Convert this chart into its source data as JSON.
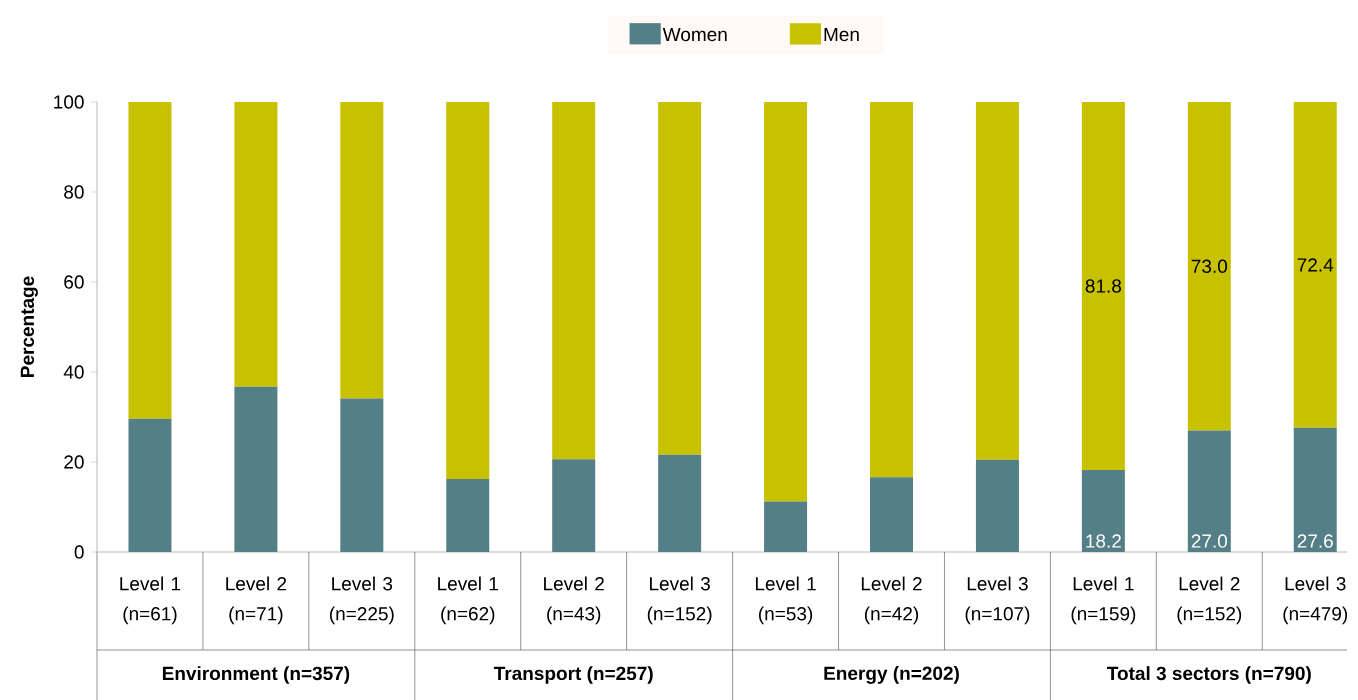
{
  "chart_data": {
    "type": "bar",
    "stacked": true,
    "ylabel": "Percentage",
    "categories": [
      "Level 1 (n=61)",
      "Level 2 (n=71)",
      "Level 3 (n=225)",
      "Level 1 (n=62)",
      "Level 2 (n=43)",
      "Level 3 (n=152)",
      "Level 1 (n=53)",
      "Level 2 (n=42)",
      "Level 3 (n=107)",
      "Level 1 (n=159)",
      "Level 2 (n=152)",
      "Level 3 (n=479)"
    ],
    "series": [
      {
        "name": "Women",
        "color": "#557f87",
        "values": [
          29.6,
          36.7,
          34.1,
          16.2,
          20.6,
          21.6,
          11.2,
          16.6,
          20.5,
          18.2,
          27.0,
          27.6
        ],
        "value_labels": [
          null,
          null,
          null,
          null,
          null,
          null,
          null,
          null,
          null,
          "18.2",
          "27.0",
          "27.6"
        ]
      },
      {
        "name": "Men",
        "color": "#c8c100",
        "values": [
          70.4,
          63.3,
          65.9,
          83.8,
          79.4,
          78.4,
          88.8,
          83.4,
          79.5,
          81.8,
          73.0,
          72.4
        ],
        "value_labels": [
          null,
          null,
          null,
          null,
          null,
          null,
          null,
          null,
          null,
          "81.8",
          "73.0",
          "72.4"
        ]
      }
    ],
    "ylim": [
      0,
      100
    ],
    "yticks": [
      0,
      20,
      40,
      60,
      80,
      100
    ],
    "legend": "top",
    "grid": false,
    "annotations": [
      "Environment (n=357)",
      "Transport (n=257)",
      "Energy (n=202)",
      "Total 3 sectors (n=790)"
    ]
  }
}
